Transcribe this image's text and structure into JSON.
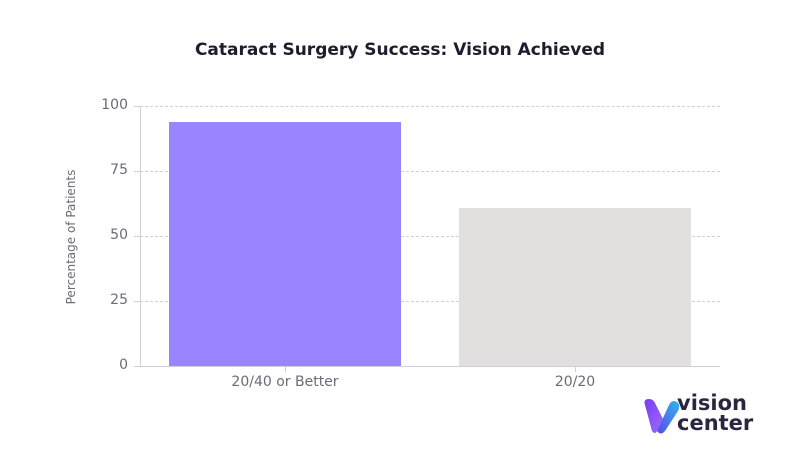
{
  "chart_data": {
    "type": "bar",
    "title": "Cataract Surgery Success: Vision Achieved",
    "xlabel": "",
    "ylabel": "Percentage of Patients",
    "categories": [
      "20/40 or Better",
      "20/20"
    ],
    "values": [
      94,
      61
    ],
    "colors": [
      "#9b84ff",
      "#e1e0df"
    ],
    "ylim": [
      0,
      100
    ],
    "yticks": [
      0,
      25,
      50,
      75,
      100
    ],
    "grid": true,
    "legend": null
  },
  "yticks_labels": [
    "100",
    "75",
    "50",
    "25",
    "0"
  ],
  "logo": {
    "line1": "vision",
    "line2": "center"
  }
}
